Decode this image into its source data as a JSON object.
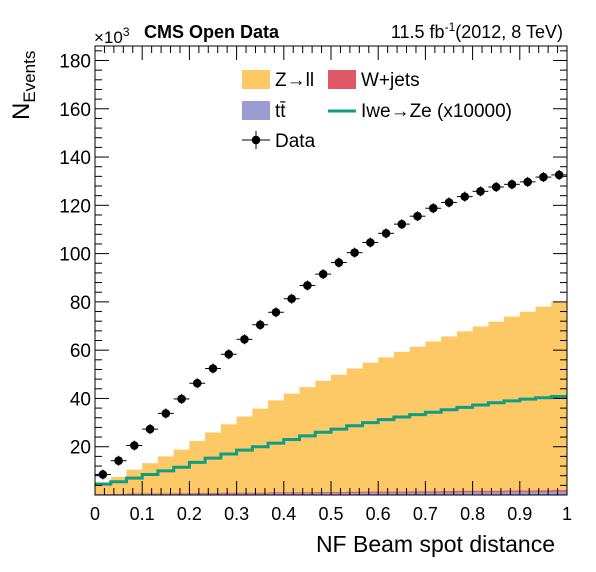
{
  "header": {
    "exponent_base": "×10",
    "exponent_power": "3",
    "experiment": "CMS Open Data",
    "lumi_value": "11.5 fb",
    "lumi_power": "-1",
    "lumi_conditions": "(2012, 8 TeV)"
  },
  "colors": {
    "zll": "#fdc967",
    "wjets": "#e05866",
    "ttbar": "#9b9bd4",
    "signal": "#0f9e83",
    "data": "#000000"
  },
  "chart_data": {
    "type": "bar",
    "xlabel": "NF Beam spot distance",
    "ylabel": "N",
    "ylabel_sub": "Events",
    "xlim": [
      0,
      1
    ],
    "ylim": [
      0,
      186
    ],
    "y_unit_multiplier": 1000,
    "x_ticks": [
      "0",
      "0.1",
      "0.2",
      "0.3",
      "0.4",
      "0.5",
      "0.6",
      "0.7",
      "0.8",
      "0.9",
      "1"
    ],
    "y_ticks": [
      "20",
      "40",
      "60",
      "80",
      "100",
      "120",
      "140",
      "160",
      "180"
    ],
    "bin_edges": [
      0,
      0.0333,
      0.0667,
      0.1,
      0.1333,
      0.1667,
      0.2,
      0.2333,
      0.2667,
      0.3,
      0.3333,
      0.3667,
      0.4,
      0.4333,
      0.4667,
      0.5,
      0.5333,
      0.5667,
      0.6,
      0.6333,
      0.6667,
      0.7,
      0.7333,
      0.7667,
      0.8,
      0.8333,
      0.8667,
      0.9,
      0.9333,
      0.9667,
      1.0
    ],
    "legend": [
      {
        "key": "zll",
        "label": "Z→ll",
        "style": "fill"
      },
      {
        "key": "wjets",
        "label": "W+jets",
        "style": "fill"
      },
      {
        "key": "ttbar",
        "label": "tt̄",
        "style": "fill"
      },
      {
        "key": "signal",
        "label": "Iwe→Ze (x10000)",
        "style": "line"
      },
      {
        "key": "data",
        "label": "Data",
        "style": "marker"
      }
    ],
    "series": [
      {
        "key": "ttbar",
        "name": "tt̄",
        "values": [
          0.3,
          0.3,
          0.4,
          0.4,
          0.4,
          0.5,
          0.5,
          0.5,
          0.6,
          0.6,
          0.6,
          0.7,
          0.7,
          0.7,
          0.8,
          0.8,
          0.8,
          0.9,
          0.9,
          0.9,
          1.0,
          1.0,
          1.0,
          1.1,
          1.1,
          1.1,
          1.2,
          1.2,
          1.2,
          1.3
        ]
      },
      {
        "key": "wjets",
        "name": "W+jets",
        "values": [
          0.2,
          0.2,
          0.3,
          0.3,
          0.3,
          0.3,
          0.4,
          0.4,
          0.4,
          0.4,
          0.4,
          0.5,
          0.5,
          0.5,
          0.5,
          0.5,
          0.6,
          0.6,
          0.6,
          0.6,
          0.6,
          0.6,
          0.7,
          0.7,
          0.7,
          0.7,
          0.7,
          0.7,
          0.8,
          0.8
        ]
      },
      {
        "key": "zll",
        "name": "Z→ll",
        "values": [
          4.8,
          7.0,
          9.8,
          12.5,
          15.3,
          18.0,
          21.5,
          25.0,
          28.3,
          31.5,
          34.8,
          38.0,
          40.8,
          43.5,
          46.0,
          48.5,
          51.0,
          53.3,
          55.5,
          57.8,
          59.8,
          62.0,
          64.0,
          66.0,
          68.0,
          70.0,
          72.0,
          74.0,
          76.0,
          78.0
        ]
      },
      {
        "key": "signal",
        "name": "Iwe→Ze (x10000)",
        "values": [
          4.5,
          5.5,
          7.0,
          8.5,
          10.0,
          11.5,
          13.5,
          15.3,
          17.0,
          18.6,
          20.0,
          21.5,
          23.0,
          24.5,
          26.0,
          27.3,
          28.7,
          30.0,
          31.2,
          32.3,
          33.3,
          34.3,
          35.3,
          36.3,
          37.3,
          38.2,
          39.0,
          39.7,
          40.3,
          40.8
        ]
      },
      {
        "key": "data",
        "name": "Data",
        "values": [
          8.5,
          14.2,
          20.5,
          27.3,
          33.8,
          39.8,
          46.3,
          52.4,
          58.3,
          64.5,
          70.5,
          75.7,
          81.3,
          86.8,
          91.5,
          96.3,
          100.4,
          104.6,
          108.4,
          112.2,
          115.5,
          118.8,
          121.2,
          123.6,
          125.8,
          127.6,
          128.7,
          129.7,
          131.7,
          132.6
        ]
      }
    ]
  }
}
